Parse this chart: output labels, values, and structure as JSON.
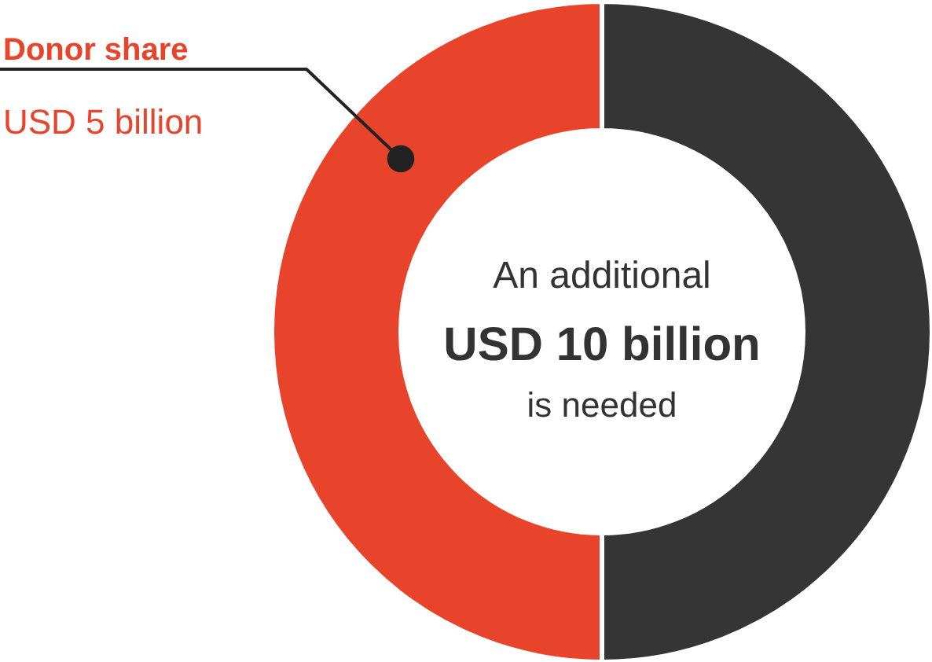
{
  "chart_data": {
    "type": "donut",
    "categories": [
      "Donor share",
      null
    ],
    "values": [
      50,
      50
    ],
    "colors": [
      "#e8442b",
      "#353535"
    ],
    "value_labels": [
      "USD 5 billion",
      null
    ],
    "annotations": [
      "An additional",
      "USD 10 billion",
      "is needed"
    ]
  }
}
